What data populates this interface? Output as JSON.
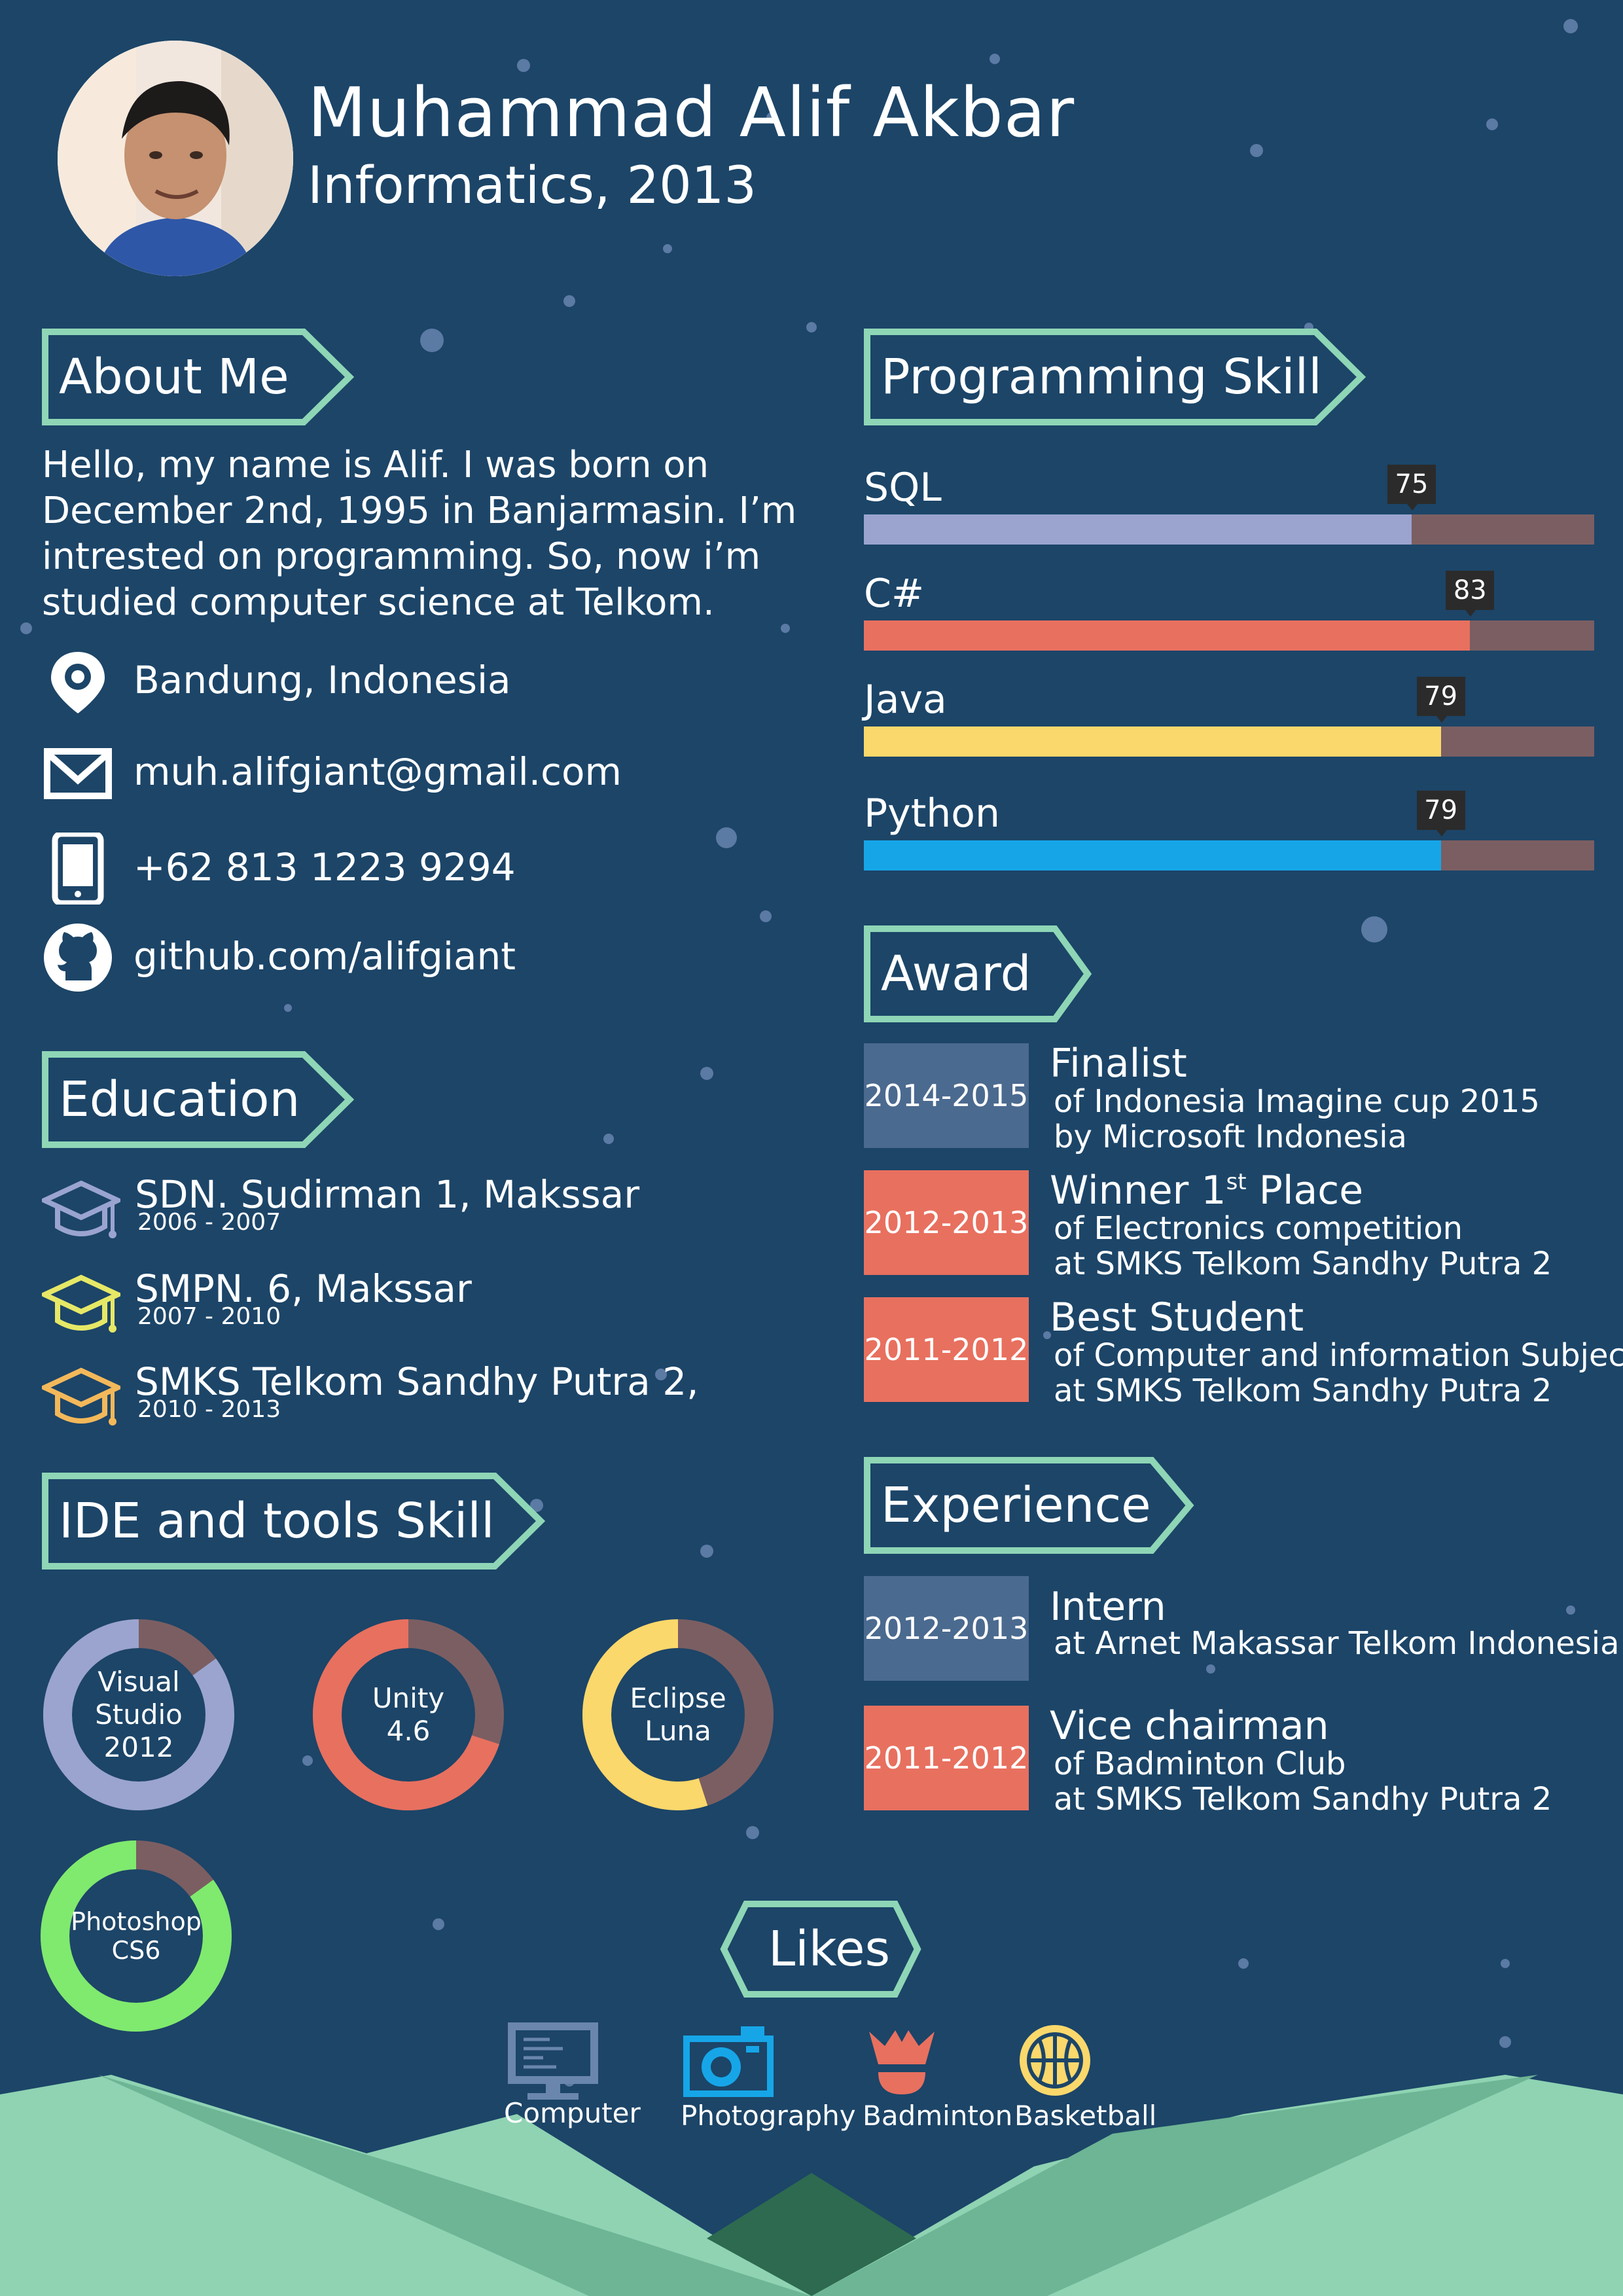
{
  "colors": {
    "background": "#1c4568",
    "tag_border": "#8ed6b6",
    "track": "#7b5e62",
    "sql": "#9aa4cf",
    "csharp": "#e8705f",
    "java": "#fbd86b",
    "python": "#16a6e8",
    "year_blue": "#4b6a8f",
    "year_red": "#e8705f",
    "photoshop": "#7fea6e",
    "hills_light": "#8fd3b3",
    "hills_mid": "#6db595",
    "hills_dark": "#2d6a4f"
  },
  "header": {
    "name": "Muhammad Alif Akbar",
    "major": "Informatics, 2013"
  },
  "about": {
    "heading": "About Me",
    "lines": [
      "Hello, my name is Alif. I was born on",
      "December 2nd, 1995 in Banjarmasin. I’m",
      "intrested on programming. So, now i’m",
      "studied computer science at Telkom."
    ],
    "contacts": [
      {
        "icon": "location-pin-icon",
        "text": "Bandung, Indonesia"
      },
      {
        "icon": "envelope-icon",
        "text": "muh.alifgiant@gmail.com"
      },
      {
        "icon": "phone-icon",
        "text": "+62 813 1223 9294"
      },
      {
        "icon": "github-icon",
        "text": "github.com/alifgiant"
      }
    ]
  },
  "education": {
    "heading": "Education",
    "items": [
      {
        "school": "SDN. Sudirman 1, Makssar",
        "years": "2006 - 2007",
        "cap_color": "#9aa4cf"
      },
      {
        "school": "SMPN. 6, Makssar",
        "years": "2007 - 2010",
        "cap_color": "#e6e866"
      },
      {
        "school": "SMKS Telkom Sandhy Putra 2,",
        "years": "2010 - 2013",
        "cap_color": "#f3b85a"
      }
    ]
  },
  "ide_tools": {
    "heading": "IDE and tools Skill",
    "items": [
      {
        "lines": [
          "Visual",
          "Studio",
          "2012"
        ],
        "percent": 85,
        "color": "#9aa4cf"
      },
      {
        "lines": [
          "Unity",
          "4.6"
        ],
        "percent": 70,
        "color": "#e8705f"
      },
      {
        "lines": [
          "Eclipse",
          "Luna"
        ],
        "percent": 55,
        "color": "#fbd86b"
      },
      {
        "lines": [
          "Photoshop",
          "CS6"
        ],
        "percent": 85,
        "color": "#7fea6e"
      }
    ]
  },
  "programming": {
    "heading": "Programming Skill",
    "skills": [
      {
        "name": "SQL",
        "value": 75,
        "label": "75",
        "color": "#9aa4cf"
      },
      {
        "name": "C#",
        "value": 83,
        "label": "83",
        "color": "#e8705f"
      },
      {
        "name": "Java",
        "value": 79,
        "label": "79",
        "color": "#fbd86b"
      },
      {
        "name": "Python",
        "value": 79,
        "label": "79",
        "color": "#16a6e8"
      }
    ]
  },
  "award": {
    "heading": "Award",
    "items": [
      {
        "year": "2014-2015",
        "title": "Finalist",
        "sup": "",
        "title_tail": "",
        "line1": "of Indonesia Imagine cup 2015",
        "line2": "by Microsoft Indonesia",
        "color": "#4b6a8f"
      },
      {
        "year": "2012-2013",
        "title": "Winner 1",
        "sup": "st",
        "title_tail": " Place",
        "line1": "of Electronics competition",
        "line2": "at SMKS Telkom Sandhy Putra 2",
        "color": "#e8705f"
      },
      {
        "year": "2011-2012",
        "title": "Best Student",
        "sup": "",
        "title_tail": "",
        "line1": "of Computer and information Subject",
        "line2": "at SMKS Telkom Sandhy Putra 2",
        "color": "#e8705f"
      }
    ]
  },
  "experience": {
    "heading": "Experience",
    "items": [
      {
        "year": "2012-2013",
        "title": "Intern",
        "line1": "at Arnet Makassar Telkom Indonesia",
        "line2": "",
        "color": "#4b6a8f"
      },
      {
        "year": "2011-2012",
        "title": "Vice chairman",
        "line1": "of Badminton Club",
        "line2": "at SMKS Telkom Sandhy Putra 2",
        "color": "#e8705f"
      }
    ]
  },
  "likes": {
    "heading": "Likes",
    "items": [
      {
        "icon": "computer-icon",
        "label": "Computer"
      },
      {
        "icon": "camera-icon",
        "label": "Photography"
      },
      {
        "icon": "shuttlecock-icon",
        "label": "Badminton"
      },
      {
        "icon": "basketball-icon",
        "label": "Basketball"
      }
    ]
  }
}
